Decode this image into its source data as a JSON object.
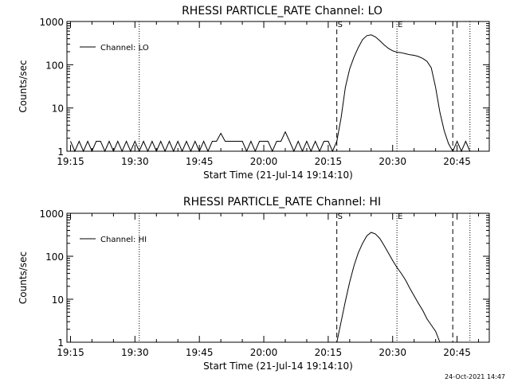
{
  "chart_data": [
    {
      "type": "line",
      "title": "RHESSI PARTICLE_RATE Channel: LO",
      "xlabel": "Start Time (21-Jul-14 19:14:10)",
      "ylabel": "Counts/sec",
      "y_scale": "log",
      "ylim": [
        1,
        1000
      ],
      "xlim": [
        "19:14:10",
        "20:52:30"
      ],
      "x_ticks": [
        "19:15",
        "19:30",
        "19:45",
        "20:00",
        "20:15",
        "20:30",
        "20:45"
      ],
      "y_ticks": [
        "1",
        "10",
        "100",
        "1000"
      ],
      "legend": {
        "placement": "top-left",
        "entries": [
          "Channel: LO"
        ]
      },
      "markers": [
        {
          "label": "S",
          "time": "20:17",
          "style": "dashed"
        },
        {
          "label": "E",
          "time": "20:31",
          "style": "dotted"
        }
      ],
      "extra_vlines": [
        {
          "time": "19:31",
          "style": "dotted"
        },
        {
          "time": "20:44",
          "style": "dashed"
        },
        {
          "time": "20:48",
          "style": "dotted"
        }
      ],
      "series": [
        {
          "name": "Channel: LO",
          "points": [
            [
              "19:15",
              1.7
            ],
            [
              "19:16",
              1.0
            ],
            [
              "19:17",
              1.7
            ],
            [
              "19:18",
              1.0
            ],
            [
              "19:19",
              1.7
            ],
            [
              "19:20",
              1.0
            ],
            [
              "19:21",
              1.7
            ],
            [
              "19:22",
              1.7
            ],
            [
              "19:23",
              1.0
            ],
            [
              "19:24",
              1.7
            ],
            [
              "19:25",
              1.0
            ],
            [
              "19:26",
              1.7
            ],
            [
              "19:27",
              1.0
            ],
            [
              "19:28",
              1.7
            ],
            [
              "19:29",
              1.0
            ],
            [
              "19:30",
              1.7
            ],
            [
              "19:31",
              1.0
            ],
            [
              "19:32",
              1.7
            ],
            [
              "19:33",
              1.0
            ],
            [
              "19:34",
              1.7
            ],
            [
              "19:35",
              1.0
            ],
            [
              "19:36",
              1.7
            ],
            [
              "19:37",
              1.0
            ],
            [
              "19:38",
              1.7
            ],
            [
              "19:39",
              1.0
            ],
            [
              "19:40",
              1.7
            ],
            [
              "19:41",
              1.0
            ],
            [
              "19:42",
              1.7
            ],
            [
              "19:43",
              1.0
            ],
            [
              "19:44",
              1.7
            ],
            [
              "19:45",
              1.0
            ],
            [
              "19:46",
              1.7
            ],
            [
              "19:47",
              1.0
            ],
            [
              "19:48",
              1.7
            ],
            [
              "19:49",
              1.7
            ],
            [
              "19:50",
              2.6
            ],
            [
              "19:51",
              1.7
            ],
            [
              "19:52",
              1.7
            ],
            [
              "19:53",
              1.7
            ],
            [
              "19:54",
              1.7
            ],
            [
              "19:55",
              1.7
            ],
            [
              "19:56",
              1.0
            ],
            [
              "19:57",
              1.7
            ],
            [
              "19:58",
              1.0
            ],
            [
              "19:59",
              1.7
            ],
            [
              "20:00",
              1.7
            ],
            [
              "20:01",
              1.7
            ],
            [
              "20:02",
              1.0
            ],
            [
              "20:03",
              1.7
            ],
            [
              "20:04",
              1.7
            ],
            [
              "20:05",
              2.8
            ],
            [
              "20:06",
              1.7
            ],
            [
              "20:07",
              1.0
            ],
            [
              "20:08",
              1.7
            ],
            [
              "20:09",
              1.0
            ],
            [
              "20:10",
              1.7
            ],
            [
              "20:11",
              1.0
            ],
            [
              "20:12",
              1.7
            ],
            [
              "20:13",
              1.0
            ],
            [
              "20:14",
              1.7
            ],
            [
              "20:15",
              1.7
            ],
            [
              "20:16",
              1.0
            ],
            [
              "20:17",
              1.7
            ],
            [
              "20:18",
              6
            ],
            [
              "20:19",
              30
            ],
            [
              "20:20",
              80
            ],
            [
              "20:21",
              150
            ],
            [
              "20:22",
              250
            ],
            [
              "20:23",
              380
            ],
            [
              "20:24",
              470
            ],
            [
              "20:25",
              490
            ],
            [
              "20:26",
              440
            ],
            [
              "20:27",
              360
            ],
            [
              "20:28",
              290
            ],
            [
              "20:29",
              240
            ],
            [
              "20:30",
              210
            ],
            [
              "20:31",
              195
            ],
            [
              "20:32",
              190
            ],
            [
              "20:33",
              180
            ],
            [
              "20:34",
              170
            ],
            [
              "20:35",
              165
            ],
            [
              "20:36",
              155
            ],
            [
              "20:37",
              140
            ],
            [
              "20:38",
              120
            ],
            [
              "20:39",
              85
            ],
            [
              "20:40",
              30
            ],
            [
              "20:41",
              8
            ],
            [
              "20:42",
              3
            ],
            [
              "20:43",
              1.5
            ],
            [
              "20:44",
              1.0
            ],
            [
              "20:45",
              1.7
            ],
            [
              "20:46",
              1.0
            ],
            [
              "20:47",
              1.7
            ],
            [
              "20:48",
              1.0
            ]
          ]
        }
      ]
    },
    {
      "type": "line",
      "title": "RHESSI PARTICLE_RATE Channel: HI",
      "xlabel": "Start Time (21-Jul-14 19:14:10)",
      "ylabel": "Counts/sec",
      "y_scale": "log",
      "ylim": [
        1,
        1000
      ],
      "xlim": [
        "19:14:10",
        "20:52:30"
      ],
      "x_ticks": [
        "19:15",
        "19:30",
        "19:45",
        "20:00",
        "20:15",
        "20:30",
        "20:45"
      ],
      "y_ticks": [
        "1",
        "10",
        "100",
        "1000"
      ],
      "legend": {
        "placement": "top-left",
        "entries": [
          "Channel: HI"
        ]
      },
      "markers": [
        {
          "label": "S",
          "time": "20:17",
          "style": "dashed"
        },
        {
          "label": "E",
          "time": "20:31",
          "style": "dotted"
        }
      ],
      "extra_vlines": [
        {
          "time": "19:31",
          "style": "dotted"
        },
        {
          "time": "20:44",
          "style": "dashed"
        },
        {
          "time": "20:48",
          "style": "dotted"
        }
      ],
      "series": [
        {
          "name": "Channel: HI",
          "points": [
            [
              "20:17",
              1.0
            ],
            [
              "20:18",
              3
            ],
            [
              "20:19",
              9
            ],
            [
              "20:20",
              25
            ],
            [
              "20:21",
              60
            ],
            [
              "20:22",
              120
            ],
            [
              "20:23",
              200
            ],
            [
              "20:24",
              300
            ],
            [
              "20:25",
              360
            ],
            [
              "20:26",
              330
            ],
            [
              "20:27",
              260
            ],
            [
              "20:28",
              180
            ],
            [
              "20:29",
              120
            ],
            [
              "20:30",
              80
            ],
            [
              "20:31",
              55
            ],
            [
              "20:32",
              40
            ],
            [
              "20:33",
              28
            ],
            [
              "20:34",
              18
            ],
            [
              "20:35",
              12
            ],
            [
              "20:36",
              8
            ],
            [
              "20:37",
              5.5
            ],
            [
              "20:38",
              3.5
            ],
            [
              "20:39",
              2.5
            ],
            [
              "20:40",
              1.8
            ],
            [
              "20:41",
              1.0
            ]
          ]
        }
      ]
    }
  ],
  "footer": "24-Oct-2021 14:47"
}
